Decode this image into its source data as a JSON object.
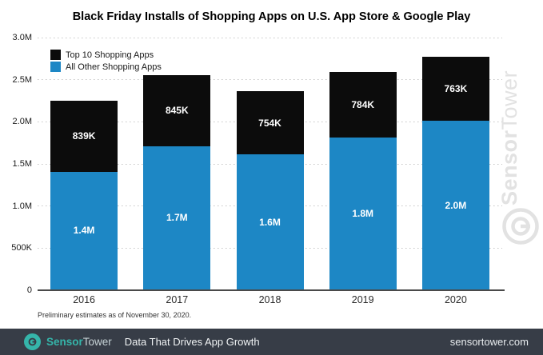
{
  "title": "Black Friday Installs of Shopping Apps on U.S. App Store & Google Play",
  "legend": {
    "items": [
      {
        "label": "Top 10 Shopping Apps",
        "color": "#0c0c0c"
      },
      {
        "label": "All Other Shopping Apps",
        "color": "#1d87c5"
      }
    ]
  },
  "chart_data": {
    "type": "bar",
    "stacked": true,
    "title": "Black Friday Installs of Shopping Apps on U.S. App Store & Google Play",
    "categories": [
      "2016",
      "2017",
      "2018",
      "2019",
      "2020"
    ],
    "series": [
      {
        "name": "All Other Shopping Apps",
        "color": "#1d87c5",
        "label_color": "#ffffff",
        "values": [
          1400000,
          1700000,
          1600000,
          1800000,
          2000000
        ],
        "labels": [
          "1.4M",
          "1.7M",
          "1.6M",
          "1.8M",
          "2.0M"
        ]
      },
      {
        "name": "Top 10 Shopping Apps",
        "color": "#0c0c0c",
        "label_color": "#ffffff",
        "values": [
          839000,
          845000,
          754000,
          784000,
          763000
        ],
        "labels": [
          "839K",
          "845K",
          "754K",
          "784K",
          "763K"
        ]
      }
    ],
    "xlabel": "",
    "ylabel": "",
    "ylim": [
      0,
      3000000
    ],
    "yticks": [
      {
        "value": 3000000,
        "label": "3.0M"
      },
      {
        "value": 2500000,
        "label": "2.5M"
      },
      {
        "value": 2000000,
        "label": "2.0M"
      },
      {
        "value": 1500000,
        "label": "1.5M"
      },
      {
        "value": 1000000,
        "label": "1.0M"
      },
      {
        "value": 500000,
        "label": "500K"
      },
      {
        "value": 0,
        "label": "0"
      }
    ],
    "grid": "horizontal-dotted",
    "legend_position": "top-left"
  },
  "note": "Preliminary estimates as of November 30, 2020.",
  "watermark": {
    "brand_bold": "Sensor",
    "brand_light": "Tower"
  },
  "footer": {
    "brand_bold": "Sensor",
    "brand_light": "Tower",
    "tagline": "Data That Drives App Growth",
    "url": "sensortower.com",
    "background": "#373d47",
    "accent": "#35b5aa",
    "brand_light_color": "#c6d2d5"
  }
}
